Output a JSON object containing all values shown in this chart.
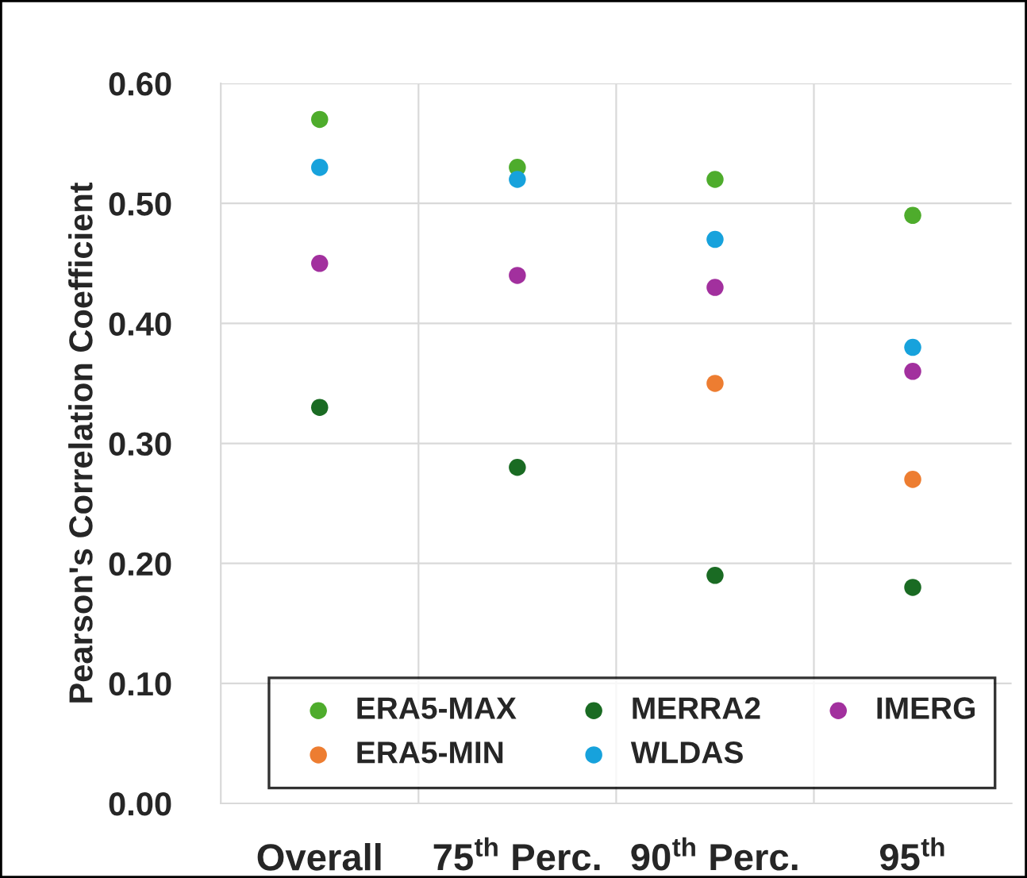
{
  "chart_data": {
    "type": "scatter",
    "ylabel": "Pearson's Correlation Coefficient",
    "categories": [
      "Overall",
      "75$^{th}$ Perc.",
      "90$^{th}$ Perc.",
      "95$^{th}$"
    ],
    "ylim": [
      0,
      0.6
    ],
    "yticks": [
      {
        "value": 0,
        "label": "0.00"
      },
      {
        "value": 0.1,
        "label": "0.10"
      },
      {
        "value": 0.2,
        "label": "0.20"
      },
      {
        "value": 0.3,
        "label": "0.30"
      },
      {
        "value": 0.4,
        "label": "0.40"
      },
      {
        "value": 0.5,
        "label": "0.50"
      },
      {
        "value": 0.6,
        "label": "0.60"
      }
    ],
    "grid": true,
    "legend": "bottom",
    "marker": "circle",
    "series": [
      {
        "name": "ERA5-MAX",
        "color": "#4eac2c",
        "values": [
          0.57,
          0.53,
          0.52,
          0.49
        ]
      },
      {
        "name": "ERA5-MIN",
        "color": "#ed7d31",
        "values": [
          null,
          null,
          0.35,
          0.27
        ]
      },
      {
        "name": "MERRA2",
        "color": "#1a6b23",
        "values": [
          0.33,
          0.28,
          0.19,
          0.18
        ]
      },
      {
        "name": "WLDAS",
        "color": "#17a2dc",
        "values": [
          0.53,
          0.52,
          0.47,
          0.38
        ]
      },
      {
        "name": "IMERG",
        "color": "#a2309e",
        "values": [
          0.45,
          0.44,
          0.43,
          0.36
        ]
      }
    ]
  }
}
